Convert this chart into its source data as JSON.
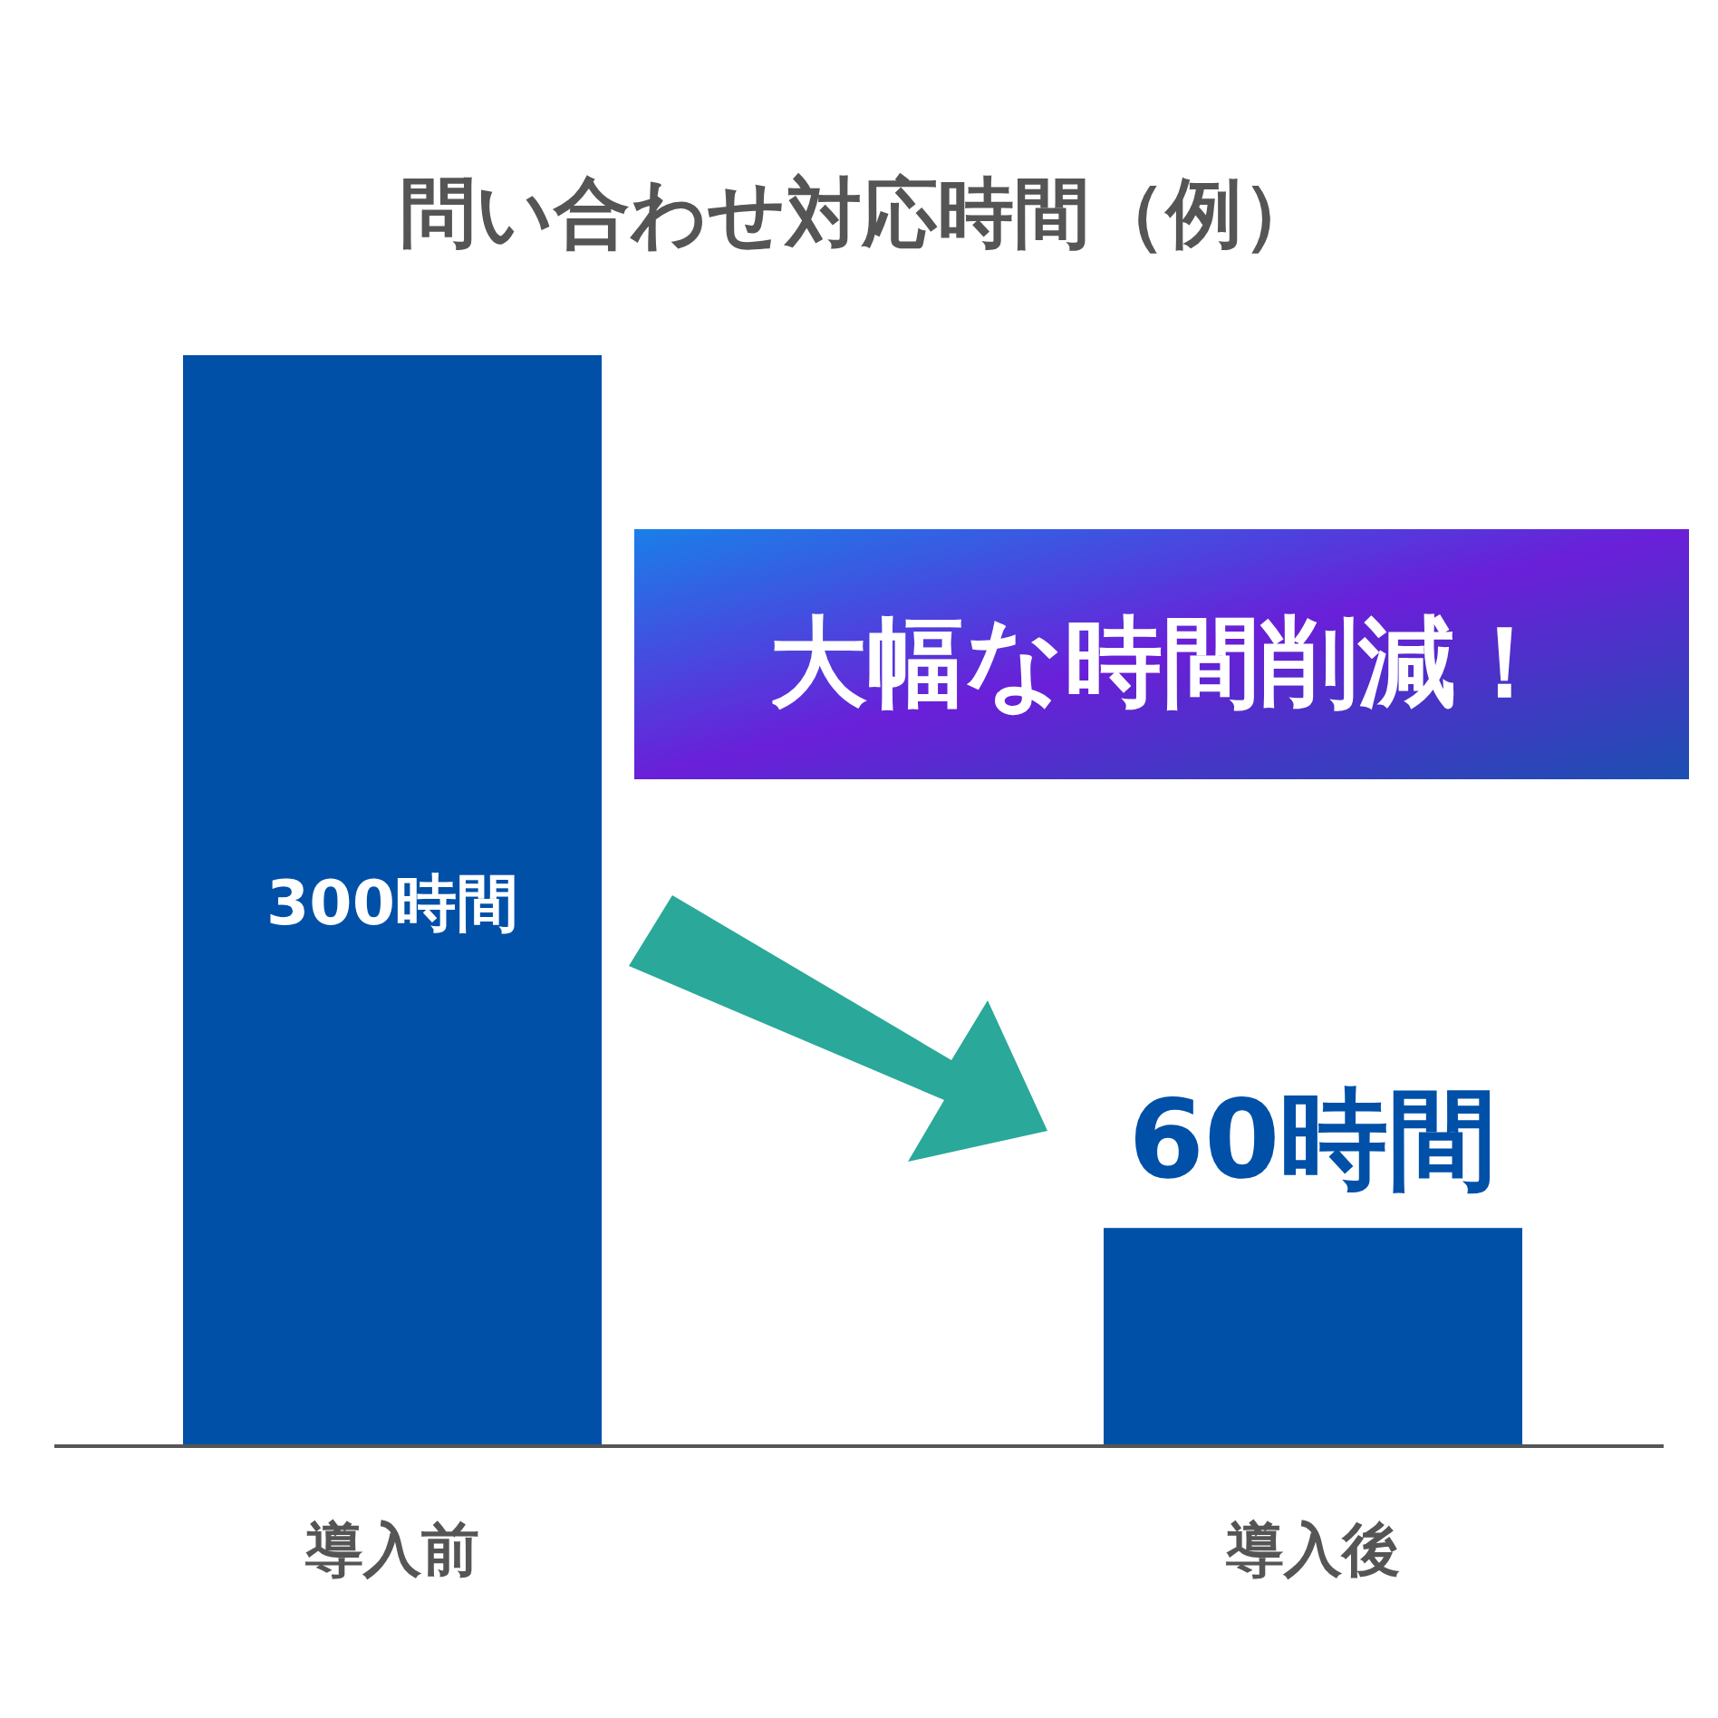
{
  "chart_data": {
    "type": "bar",
    "title": "問い合わせ対応時間（例）",
    "categories": [
      "導入前",
      "導入後"
    ],
    "values": [
      300,
      60
    ],
    "color": "#0050a8",
    "value_labels": [
      "300時間",
      "60時間"
    ],
    "annotations": [
      "大幅な時間削減！"
    ]
  }
}
